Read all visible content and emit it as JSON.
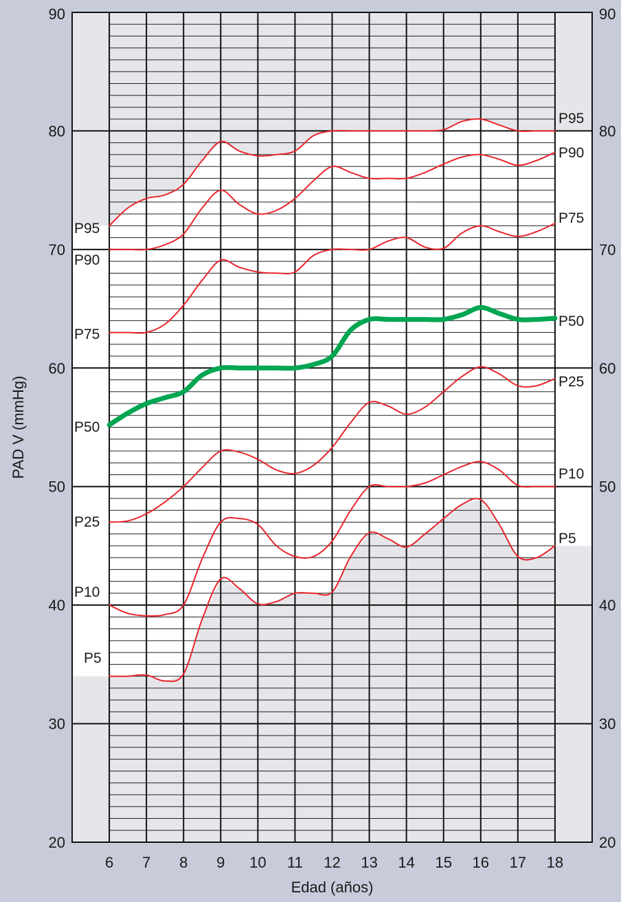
{
  "chart_data": {
    "type": "line",
    "xlabel": "Edad (años)",
    "ylabel": "PAD V (mmHg)",
    "x_ticks": [
      6,
      7,
      8,
      9,
      10,
      11,
      12,
      13,
      14,
      15,
      16,
      17,
      18
    ],
    "y_ticks": [
      20,
      30,
      40,
      50,
      60,
      70,
      80,
      90
    ],
    "xlim": [
      5,
      19
    ],
    "ylim": [
      20,
      90
    ],
    "grid": true,
    "colors": {
      "percentile": "#e8262c",
      "median": "#00a651",
      "shade": "#e6e6ea",
      "plot_bg": "#ffffff",
      "outer_bg": "#c8ccda"
    },
    "series": [
      {
        "name": "P95",
        "left_label": "P95",
        "right_label": "P95",
        "x": [
          6,
          6.5,
          7,
          7.5,
          8,
          8.5,
          9,
          9.5,
          10,
          10.5,
          11,
          11.5,
          12,
          12.5,
          13,
          13.5,
          14,
          14.5,
          15,
          15.5,
          16,
          16.5,
          17,
          17.5,
          18
        ],
        "values": [
          72,
          73.5,
          74.3,
          74.6,
          75.5,
          77.5,
          79.1,
          78.3,
          77.9,
          78,
          78.3,
          79.6,
          80,
          80,
          80,
          80,
          80,
          80,
          80.1,
          80.8,
          81,
          80.5,
          80,
          80,
          80
        ]
      },
      {
        "name": "P90",
        "left_label": "P90",
        "right_label": "P90",
        "x": [
          6,
          6.5,
          7,
          7.5,
          8,
          8.5,
          9,
          9.5,
          10,
          10.5,
          11,
          11.5,
          12,
          12.5,
          13,
          13.5,
          14,
          14.5,
          15,
          15.5,
          16,
          16.5,
          17,
          17.5,
          18
        ],
        "values": [
          70,
          70,
          70,
          70.4,
          71.3,
          73.5,
          75,
          73.8,
          73,
          73.3,
          74.3,
          75.8,
          77,
          76.5,
          76,
          76,
          76,
          76.5,
          77.2,
          77.8,
          78,
          77.6,
          77.1,
          77.5,
          78.2
        ]
      },
      {
        "name": "P75",
        "left_label": "P75",
        "right_label": "P75",
        "x": [
          6,
          6.5,
          7,
          7.5,
          8,
          8.5,
          9,
          9.5,
          10,
          10.5,
          11,
          11.5,
          12,
          12.5,
          13,
          13.5,
          14,
          14.5,
          15,
          15.5,
          16,
          16.5,
          17,
          17.5,
          18
        ],
        "values": [
          63,
          63,
          63,
          63.7,
          65.3,
          67.4,
          69.1,
          68.5,
          68.1,
          68,
          68.1,
          69.5,
          70,
          70,
          70,
          70.7,
          71,
          70.2,
          70.1,
          71.4,
          72,
          71.5,
          71.1,
          71.5,
          72.2
        ]
      },
      {
        "name": "P50",
        "left_label": "P50",
        "right_label": "P50",
        "highlight": true,
        "x": [
          6,
          6.5,
          7,
          7.5,
          8,
          8.5,
          9,
          9.5,
          10,
          10.5,
          11,
          11.5,
          12,
          12.5,
          13,
          13.5,
          14,
          14.5,
          15,
          15.5,
          16,
          16.5,
          17,
          17.5,
          18
        ],
        "values": [
          55.2,
          56.2,
          57,
          57.5,
          58,
          59.4,
          60,
          60,
          60,
          60,
          60,
          60.3,
          61,
          63.2,
          64.1,
          64.1,
          64.1,
          64.1,
          64.1,
          64.5,
          65.1,
          64.6,
          64.1,
          64.1,
          64.2
        ]
      },
      {
        "name": "P25",
        "left_label": "P25",
        "right_label": "P25",
        "x": [
          6,
          6.5,
          7,
          7.5,
          8,
          8.5,
          9,
          9.5,
          10,
          10.5,
          11,
          11.5,
          12,
          12.5,
          13,
          13.5,
          14,
          14.5,
          15,
          15.5,
          16,
          16.5,
          17,
          17.5,
          18
        ],
        "values": [
          47,
          47.1,
          47.7,
          48.7,
          50,
          51.6,
          53,
          52.9,
          52.3,
          51.4,
          51.1,
          51.8,
          53.3,
          55.4,
          57.1,
          56.8,
          56.1,
          56.7,
          58,
          59.3,
          60.1,
          59.5,
          58.5,
          58.5,
          59.1
        ]
      },
      {
        "name": "P10",
        "left_label": "P10",
        "right_label": "P10",
        "x": [
          6,
          6.5,
          7,
          7.5,
          8,
          8.5,
          9,
          9.5,
          10,
          10.5,
          11,
          11.5,
          12,
          12.5,
          13,
          13.5,
          14,
          14.5,
          15,
          15.5,
          16,
          16.5,
          17,
          17.5,
          18
        ],
        "values": [
          40,
          39.3,
          39.1,
          39.2,
          40,
          43.9,
          47,
          47.3,
          46.8,
          45,
          44.1,
          44.1,
          45.4,
          48,
          50,
          50,
          50,
          50.3,
          51,
          51.7,
          52.1,
          51.4,
          50.1,
          50,
          50
        ]
      },
      {
        "name": "P5",
        "left_label": "P5",
        "right_label": "P5",
        "x": [
          6,
          6.5,
          7,
          7.5,
          8,
          8.5,
          9,
          9.5,
          10,
          10.5,
          11,
          11.5,
          12,
          12.5,
          13,
          13.5,
          14,
          14.5,
          15,
          15.5,
          16,
          16.5,
          17,
          17.5,
          18
        ],
        "values": [
          34,
          34,
          34.1,
          33.6,
          34.2,
          38.8,
          42.2,
          41.4,
          40.1,
          40.3,
          41,
          41,
          41.1,
          44.1,
          46.1,
          45.6,
          44.9,
          46,
          47.3,
          48.5,
          48.9,
          46.8,
          44.1,
          44,
          45
        ]
      }
    ]
  }
}
